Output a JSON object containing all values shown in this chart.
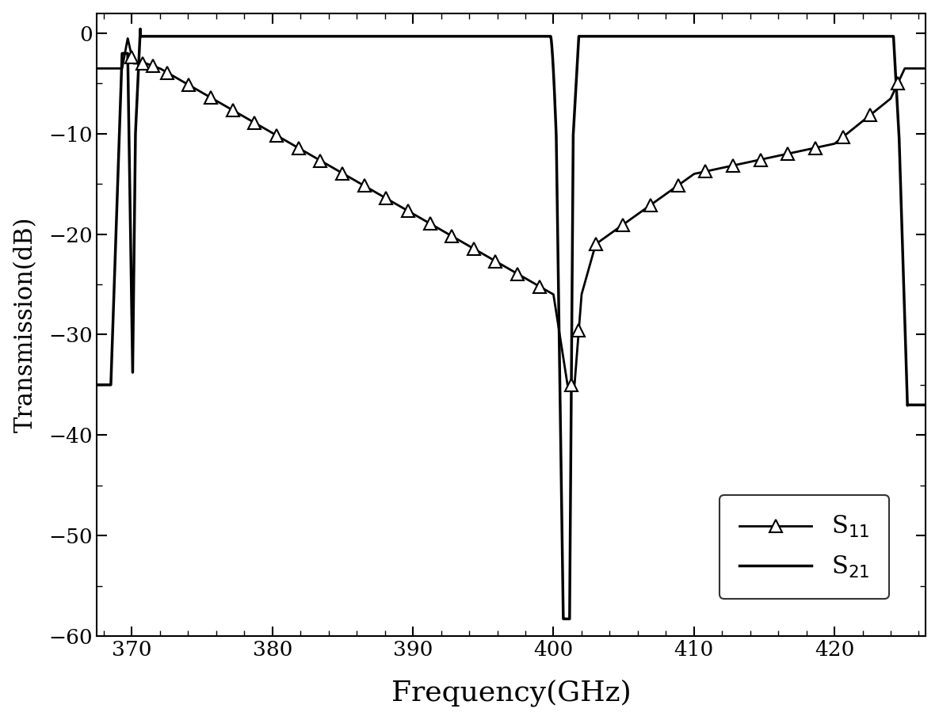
{
  "freq_min": 367.5,
  "freq_max": 426.5,
  "ylim_min": -60,
  "ylim_max": 2,
  "xlabel": "Frequency(GHz)",
  "ylabel": "Transmission(dB)",
  "xticks": [
    370,
    380,
    390,
    400,
    410,
    420
  ],
  "yticks": [
    0,
    -10,
    -20,
    -30,
    -40,
    -50,
    -60
  ],
  "bg_color": "#ffffff",
  "line_color": "#000000",
  "figsize": [
    11.85,
    9.09
  ],
  "dpi": 100
}
